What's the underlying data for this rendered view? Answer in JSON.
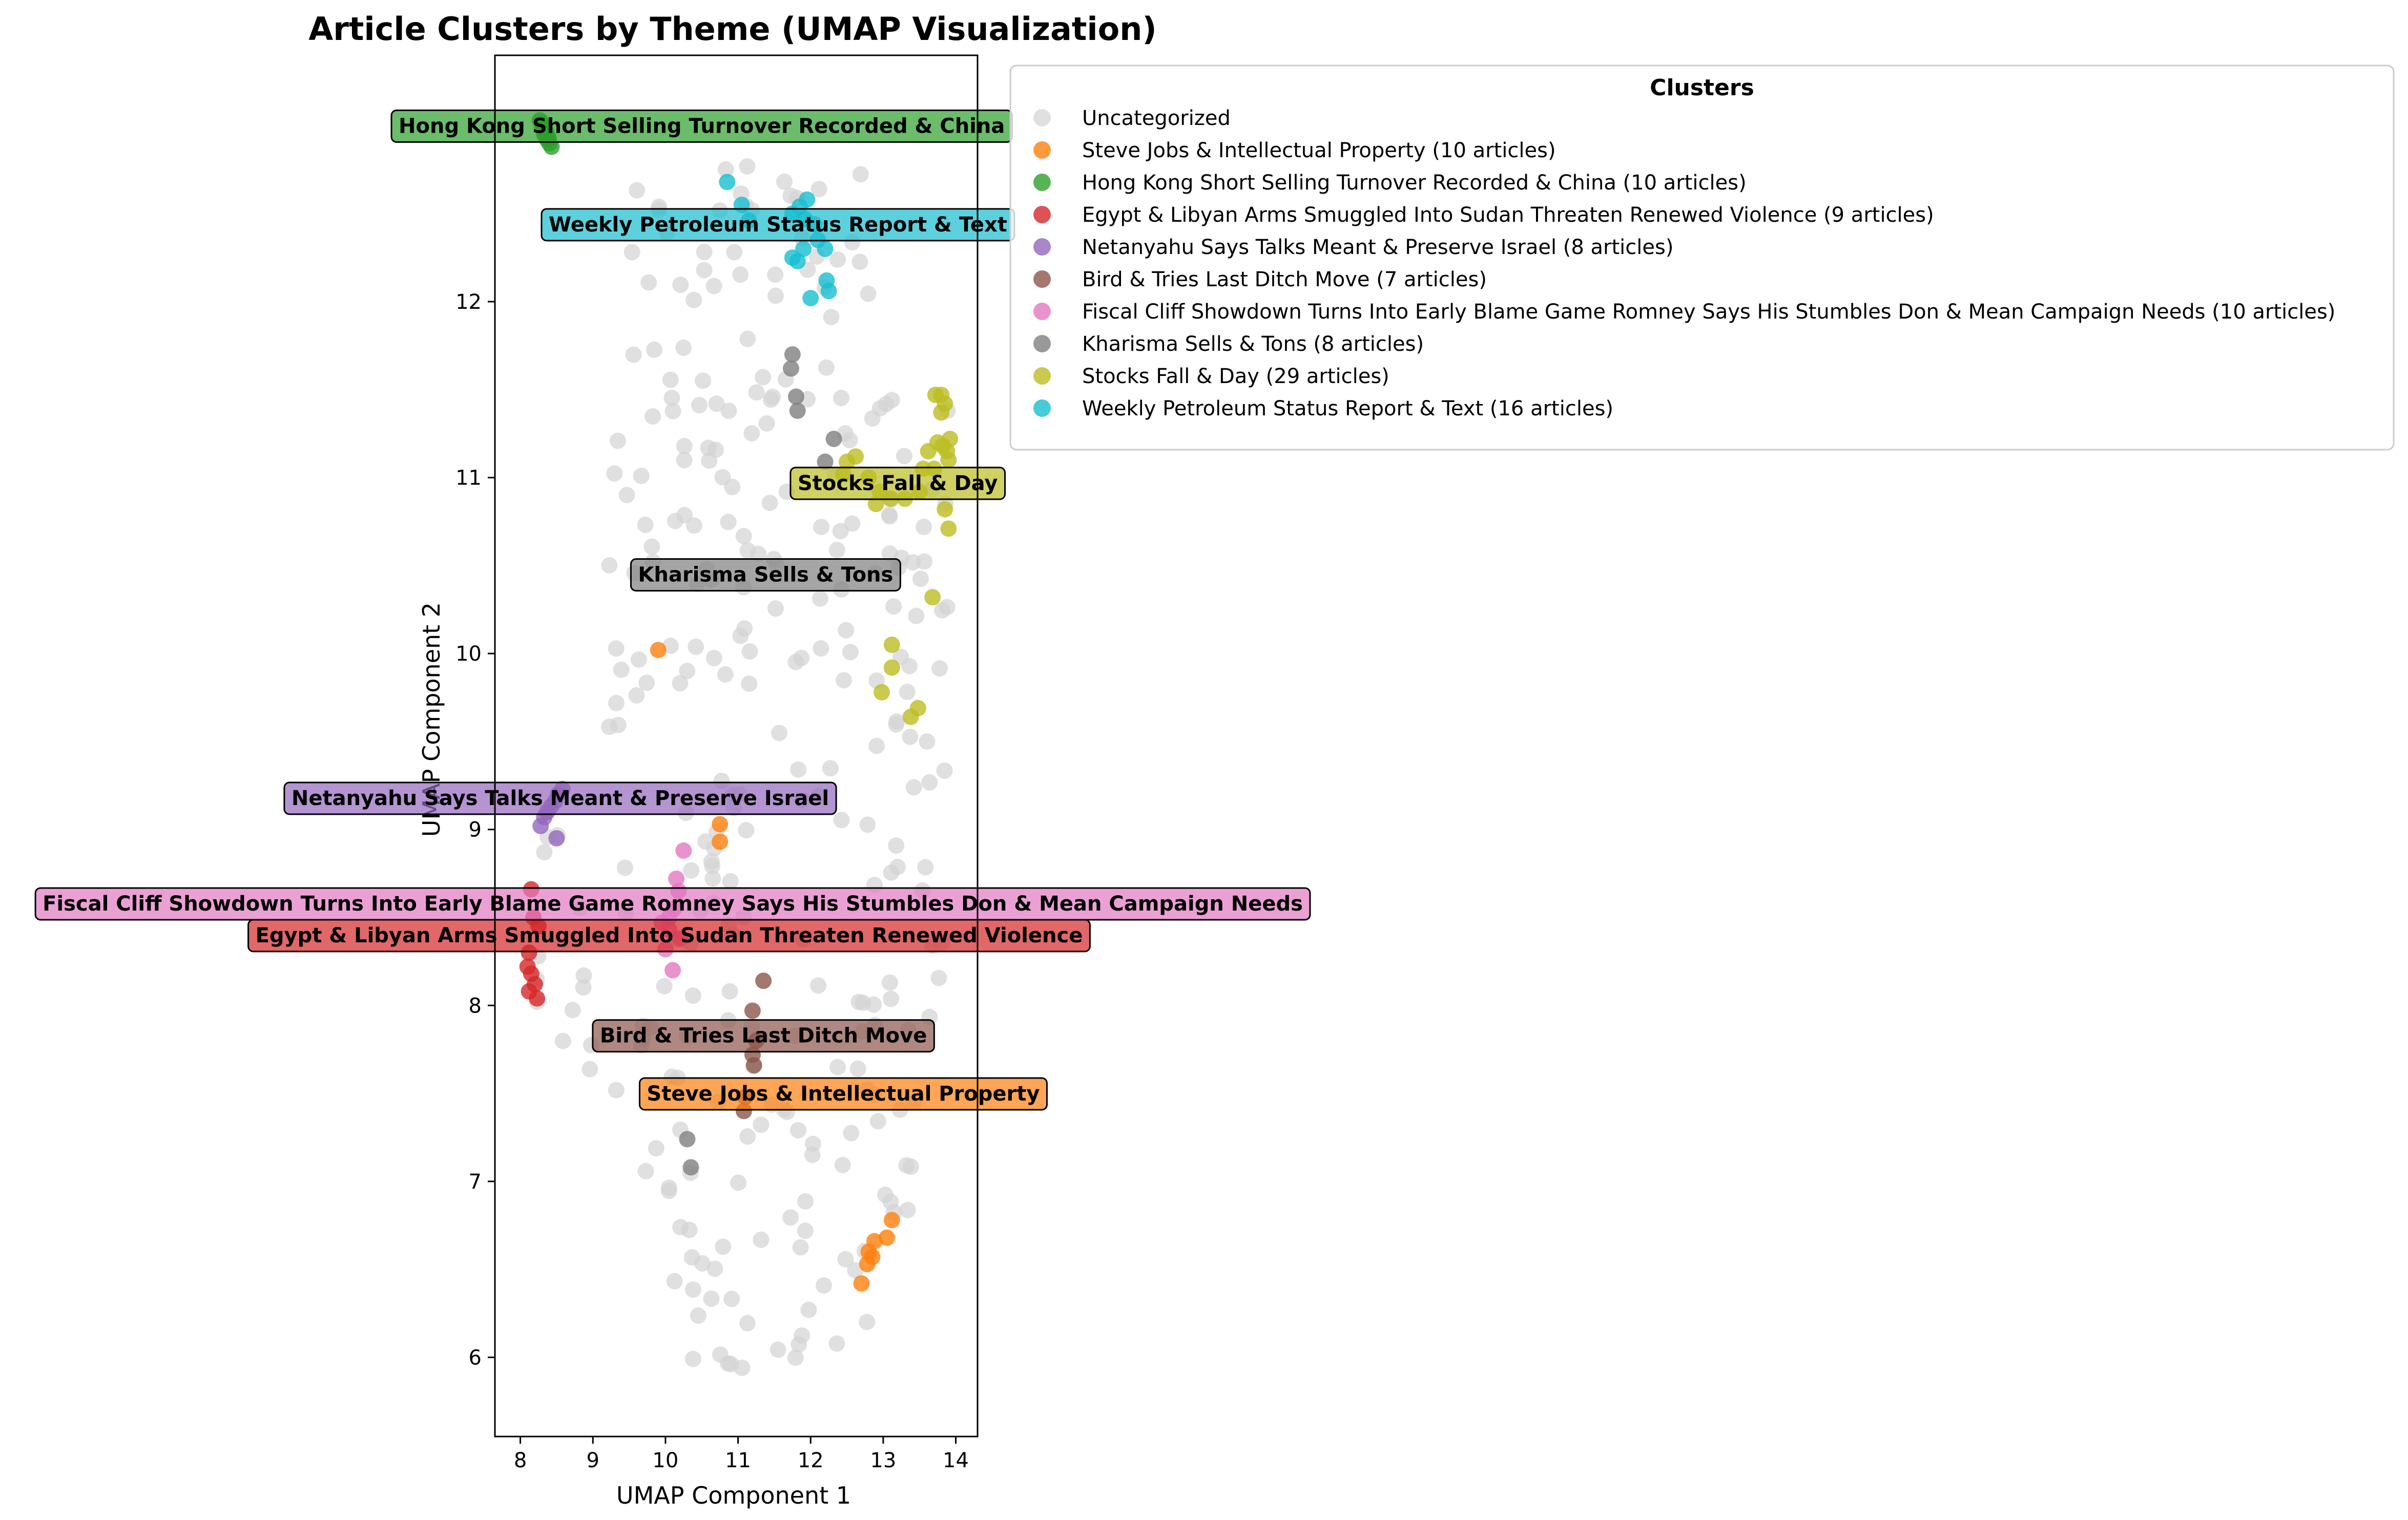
{
  "chart_data": {
    "type": "scatter",
    "title": "Article Clusters by Theme (UMAP Visualization)",
    "xlabel": "UMAP Component 1",
    "ylabel": "UMAP Component 2",
    "xlim": [
      7.65,
      14.3
    ],
    "ylim": [
      5.55,
      13.4
    ],
    "xticks": [
      8,
      9,
      10,
      11,
      12,
      13,
      14
    ],
    "yticks": [
      6,
      7,
      8,
      9,
      10,
      11,
      12
    ],
    "grid": false,
    "legend": {
      "title": "Clusters",
      "placement": "right-outside-top"
    },
    "series": [
      {
        "name": "Uncategorized",
        "color": "#d3d3d3",
        "points": []
      },
      {
        "name": "Steve Jobs & Intellectual Property (10 articles)",
        "label": "Steve Jobs & Intellectual Property",
        "label_pos": [
          12.45,
          7.5
        ],
        "color": "#ff7f0e",
        "points": [
          [
            9.9,
            10.02
          ],
          [
            10.75,
            9.03
          ],
          [
            10.75,
            8.93
          ],
          [
            12.7,
            6.42
          ],
          [
            12.78,
            6.53
          ],
          [
            12.8,
            6.6
          ],
          [
            12.88,
            6.66
          ],
          [
            13.05,
            6.68
          ],
          [
            13.12,
            6.78
          ],
          [
            12.85,
            6.57
          ]
        ]
      },
      {
        "name": "Hong Kong Short Selling Turnover Recorded & China (10 articles)",
        "label": "Hong Kong Short Selling Turnover Recorded & China",
        "label_pos": [
          10.5,
          13.0
        ],
        "color": "#2ca02c",
        "points": [
          [
            8.27,
            13.03
          ],
          [
            8.3,
            12.99
          ],
          [
            8.33,
            12.95
          ],
          [
            8.37,
            12.92
          ],
          [
            8.4,
            12.9
          ],
          [
            8.36,
            12.96
          ],
          [
            8.31,
            13.01
          ],
          [
            8.43,
            12.88
          ],
          [
            8.39,
            12.93
          ],
          [
            8.34,
            12.98
          ]
        ]
      },
      {
        "name": "Egypt & Libyan Arms Smuggled Into Sudan Threaten Renewed Violence (9 articles)",
        "label": "Egypt & Libyan Arms Smuggled Into Sudan Threaten Renewed Violence",
        "label_pos": [
          10.05,
          8.4
        ],
        "color": "#d62728",
        "points": [
          [
            8.15,
            8.66
          ],
          [
            8.1,
            8.22
          ],
          [
            8.15,
            8.18
          ],
          [
            8.2,
            8.12
          ],
          [
            8.12,
            8.08
          ],
          [
            8.23,
            8.04
          ],
          [
            8.25,
            8.45
          ],
          [
            8.18,
            8.5
          ],
          [
            8.12,
            8.3
          ]
        ]
      },
      {
        "name": "Netanyahu Says Talks Meant & Preserve Israel (8 articles)",
        "label": "Netanyahu Says Talks Meant & Preserve Israel",
        "label_pos": [
          8.55,
          9.18
        ],
        "color": "#9467bd",
        "points": [
          [
            8.28,
            9.02
          ],
          [
            8.33,
            9.07
          ],
          [
            8.37,
            9.1
          ],
          [
            8.42,
            9.13
          ],
          [
            8.48,
            9.16
          ],
          [
            8.52,
            9.2
          ],
          [
            8.58,
            9.23
          ],
          [
            8.5,
            8.95
          ]
        ]
      },
      {
        "name": "Bird & Tries Last Ditch Move (7 articles)",
        "label": "Bird & Tries Last Ditch Move",
        "label_pos": [
          11.35,
          7.83
        ],
        "color": "#8c564b",
        "points": [
          [
            11.35,
            8.14
          ],
          [
            11.2,
            7.97
          ],
          [
            11.2,
            7.72
          ],
          [
            11.22,
            7.66
          ],
          [
            11.1,
            7.48
          ],
          [
            11.08,
            7.4
          ],
          [
            11.25,
            7.8
          ]
        ]
      },
      {
        "name": "Fiscal Cliff Showdown Turns Into Early Blame Game Romney Says His Stumbles Don & Mean Campaign Needs (10 articles)",
        "label": "Fiscal Cliff Showdown Turns Into Early Blame Game Romney Says His Stumbles Don & Mean Campaign Needs",
        "label_pos": [
          10.1,
          8.58
        ],
        "color": "#e377c2",
        "points": [
          [
            10.25,
            8.88
          ],
          [
            10.15,
            8.72
          ],
          [
            10.12,
            8.55
          ],
          [
            10.05,
            8.43
          ],
          [
            10.0,
            8.32
          ],
          [
            10.1,
            8.2
          ],
          [
            10.18,
            8.65
          ],
          [
            10.05,
            8.5
          ],
          [
            10.2,
            8.38
          ],
          [
            9.95,
            8.47
          ]
        ]
      },
      {
        "name": "Kharisma Sells & Tons (8 articles)",
        "label": "Kharisma Sells & Tons",
        "label_pos": [
          11.38,
          10.45
        ],
        "color": "#7f7f7f",
        "points": [
          [
            11.75,
            11.7
          ],
          [
            11.73,
            11.62
          ],
          [
            11.8,
            11.46
          ],
          [
            11.82,
            11.38
          ],
          [
            12.32,
            11.22
          ],
          [
            12.2,
            11.09
          ],
          [
            10.3,
            7.24
          ],
          [
            10.35,
            7.08
          ]
        ]
      },
      {
        "name": "Stocks Fall & Day (29 articles)",
        "label": "Stocks Fall & Day",
        "label_pos": [
          13.2,
          10.97
        ],
        "color": "#bcbd22",
        "points": [
          [
            13.72,
            11.47
          ],
          [
            13.8,
            11.47
          ],
          [
            13.85,
            11.42
          ],
          [
            13.8,
            11.37
          ],
          [
            13.75,
            11.2
          ],
          [
            13.82,
            11.18
          ],
          [
            13.92,
            11.22
          ],
          [
            13.88,
            11.15
          ],
          [
            13.9,
            11.1
          ],
          [
            13.7,
            11.05
          ],
          [
            13.62,
            11.15
          ],
          [
            13.55,
            11.05
          ],
          [
            12.62,
            11.12
          ],
          [
            12.5,
            11.09
          ],
          [
            12.45,
            11.02
          ],
          [
            12.8,
            11.0
          ],
          [
            12.95,
            10.92
          ],
          [
            13.1,
            10.88
          ],
          [
            12.9,
            10.85
          ],
          [
            13.3,
            10.88
          ],
          [
            13.5,
            10.92
          ],
          [
            13.85,
            10.82
          ],
          [
            13.9,
            10.71
          ],
          [
            13.68,
            10.32
          ],
          [
            13.12,
            10.05
          ],
          [
            13.12,
            9.92
          ],
          [
            12.98,
            9.78
          ],
          [
            13.48,
            9.69
          ],
          [
            13.38,
            9.64
          ]
        ]
      },
      {
        "name": "Weekly Petroleum Status Report & Text (16 articles)",
        "label": "Weekly Petroleum Status Report & Text",
        "label_pos": [
          11.55,
          12.44
        ],
        "color": "#17becf",
        "points": [
          [
            10.85,
            12.68
          ],
          [
            11.05,
            12.55
          ],
          [
            11.15,
            12.46
          ],
          [
            11.75,
            12.5
          ],
          [
            11.85,
            12.54
          ],
          [
            11.95,
            12.58
          ],
          [
            11.92,
            12.47
          ],
          [
            12.05,
            12.44
          ],
          [
            12.1,
            12.35
          ],
          [
            11.9,
            12.3
          ],
          [
            12.2,
            12.3
          ],
          [
            11.75,
            12.25
          ],
          [
            11.82,
            12.23
          ],
          [
            12.22,
            12.12
          ],
          [
            12.25,
            12.06
          ],
          [
            12.0,
            12.02
          ]
        ]
      }
    ]
  }
}
